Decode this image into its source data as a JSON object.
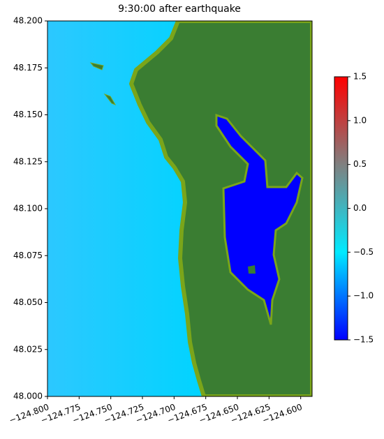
{
  "chart_data": {
    "type": "map",
    "title": "9:30:00 after earthquake",
    "xlim": [
      -124.8,
      -124.591
    ],
    "ylim": [
      48.0,
      48.2
    ],
    "xticks": [
      {
        "value": -124.8,
        "label": "−124.800"
      },
      {
        "value": -124.775,
        "label": "−124.775"
      },
      {
        "value": -124.75,
        "label": "−124.750"
      },
      {
        "value": -124.725,
        "label": "−124.725"
      },
      {
        "value": -124.7,
        "label": "−124.700"
      },
      {
        "value": -124.675,
        "label": "−124.675"
      },
      {
        "value": -124.65,
        "label": "−124.650"
      },
      {
        "value": -124.625,
        "label": "−124.625"
      },
      {
        "value": -124.6,
        "label": "−124.600"
      }
    ],
    "yticks": [
      {
        "value": 48.0,
        "label": "48.000"
      },
      {
        "value": 48.025,
        "label": "48.025"
      },
      {
        "value": 48.05,
        "label": "48.050"
      },
      {
        "value": 48.075,
        "label": "48.075"
      },
      {
        "value": 48.1,
        "label": "48.100"
      },
      {
        "value": 48.125,
        "label": "48.125"
      },
      {
        "value": 48.15,
        "label": "48.150"
      },
      {
        "value": 48.175,
        "label": "48.175"
      },
      {
        "value": 48.2,
        "label": "48.200"
      }
    ],
    "colorbar": {
      "clim": [
        -1.5,
        1.5
      ],
      "colors": [
        "#0000ff",
        "#00eaff",
        "#808080",
        "#ff0000"
      ],
      "ticks": [
        {
          "value": -1.5,
          "label": "−1.5"
        },
        {
          "value": -1,
          "label": "−1.0"
        },
        {
          "value": -0.5,
          "label": "−0.5"
        },
        {
          "value": 0,
          "label": "0.0"
        },
        0.5,
        {
          "value": 1,
          "label": "1.0"
        },
        1.5
      ]
    }
  }
}
